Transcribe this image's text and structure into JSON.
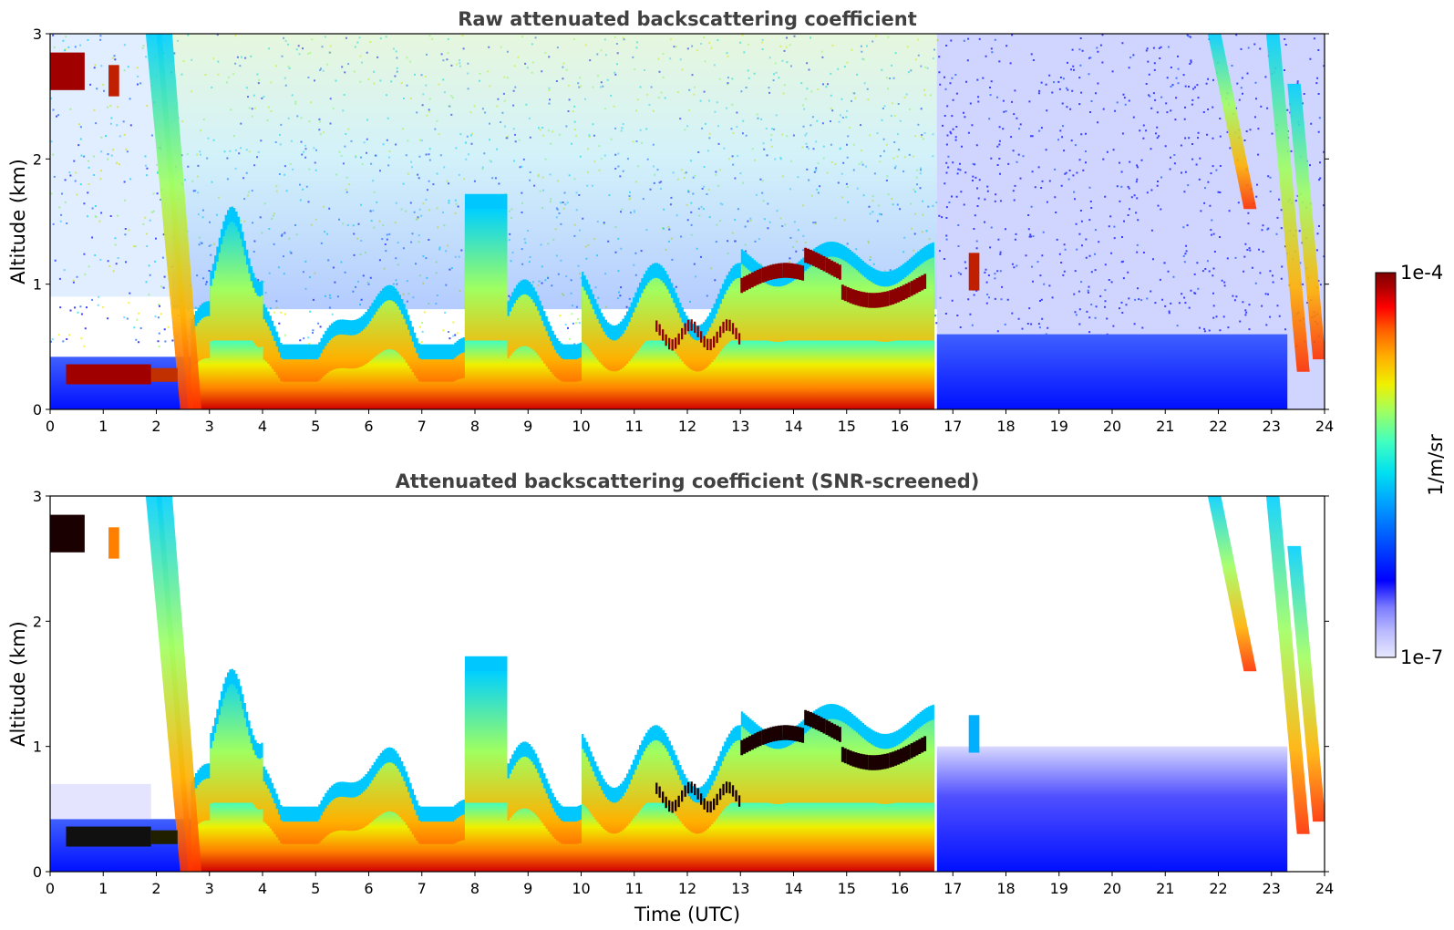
{
  "chart_data": [
    {
      "type": "heatmap",
      "title": "Raw attenuated backscattering coefficient",
      "xlabel": "",
      "ylabel": "Altitude (km)",
      "xlim": [
        0,
        24
      ],
      "ylim": [
        0,
        3
      ],
      "xticks": [
        "0",
        "1",
        "2",
        "3",
        "4",
        "5",
        "6",
        "7",
        "8",
        "9",
        "10",
        "11",
        "12",
        "13",
        "14",
        "15",
        "16",
        "17",
        "18",
        "19",
        "20",
        "21",
        "22",
        "23",
        "24"
      ],
      "yticks": [
        "0",
        "1",
        "2",
        "3"
      ],
      "colorscale": "jet, log",
      "features": [
        {
          "label": "low-level aerosol / boundary layer",
          "x_range": [
            2.6,
            16.7
          ],
          "y_range": [
            0,
            0.5
          ]
        },
        {
          "label": "cloud layer",
          "x_range": [
            13.0,
            16.5
          ],
          "y_range": [
            0.9,
            1.3
          ]
        },
        {
          "label": "elevated layer",
          "x_range": [
            0.0,
            0.6
          ],
          "y_range": [
            2.55,
            2.85
          ]
        },
        {
          "label": "low layer",
          "x_range": [
            0.3,
            1.9
          ],
          "y_range": [
            0.2,
            0.35
          ]
        }
      ]
    },
    {
      "type": "heatmap",
      "title": "Attenuated backscattering coefficient (SNR-screened)",
      "xlabel": "Time (UTC)",
      "ylabel": "Altitude (km)",
      "xlim": [
        0,
        24
      ],
      "ylim": [
        0,
        3
      ],
      "xticks": [
        "0",
        "1",
        "2",
        "3",
        "4",
        "5",
        "6",
        "7",
        "8",
        "9",
        "10",
        "11",
        "12",
        "13",
        "14",
        "15",
        "16",
        "17",
        "18",
        "19",
        "20",
        "21",
        "22",
        "23",
        "24"
      ],
      "yticks": [
        "0",
        "1",
        "2",
        "3"
      ],
      "colorscale": "jet, log"
    }
  ],
  "colorbar": {
    "label": "1/m/sr",
    "max_label": "1e-4",
    "min_label": "1e-7",
    "colors": [
      "#e8e8ff",
      "#b8b8ff",
      "#7c7cff",
      "#0000ff",
      "#0050ff",
      "#00a0ff",
      "#00e0f0",
      "#40ffc0",
      "#a0ff60",
      "#f0f000",
      "#ffb000",
      "#ff6000",
      "#ff0000",
      "#b00000",
      "#7f0000"
    ]
  }
}
